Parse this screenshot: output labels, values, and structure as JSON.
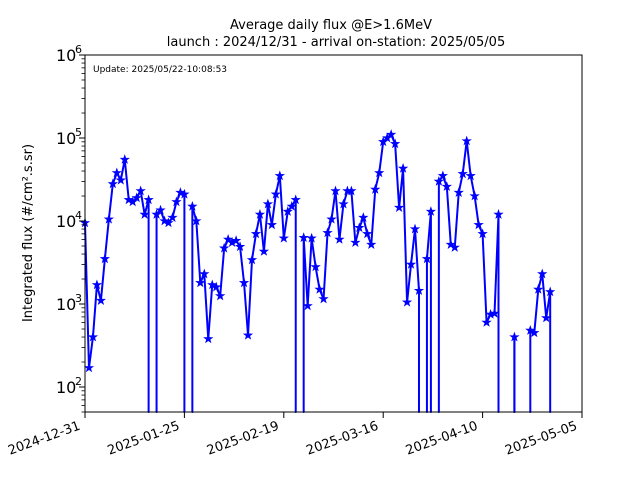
{
  "chart_data": {
    "type": "line",
    "title_line1": "Average daily flux @E>1.6MeV",
    "title_line2": "launch : 2024/12/31 - arrival on-station: 2025/05/05",
    "annotation": "Update: 2025/05/22-10:08:53",
    "ylabel": "Integrated flux (#/cm².s.sr)",
    "xlabel": "",
    "yscale": "log",
    "ylim": [
      50,
      1000000
    ],
    "xlim": [
      "2024-12-31",
      "2025-05-05"
    ],
    "xticks": [
      "2024-12-31",
      "2025-01-25",
      "2025-02-19",
      "2025-03-16",
      "2025-04-10",
      "2025-05-05"
    ],
    "yticks": [
      {
        "base": "10",
        "exp": "2",
        "value": 100
      },
      {
        "base": "10",
        "exp": "3",
        "value": 1000
      },
      {
        "base": "10",
        "exp": "4",
        "value": 10000
      },
      {
        "base": "10",
        "exp": "5",
        "value": 100000
      },
      {
        "base": "10",
        "exp": "6",
        "value": 1000000
      }
    ],
    "grid": false,
    "series": [
      {
        "color": "#0000ff",
        "marker": "star",
        "x": [
          "2024-12-31",
          "2025-01-01",
          "2025-01-02",
          "2025-01-03",
          "2025-01-04",
          "2025-01-05",
          "2025-01-06",
          "2025-01-07",
          "2025-01-08",
          "2025-01-09",
          "2025-01-10",
          "2025-01-11",
          "2025-01-12",
          "2025-01-13",
          "2025-01-14",
          "2025-01-15",
          "2025-01-16",
          "2025-01-17",
          "2025-01-18",
          "2025-01-19",
          "2025-01-20",
          "2025-01-21",
          "2025-01-22",
          "2025-01-23",
          "2025-01-24",
          "2025-01-25",
          "2025-01-26",
          "2025-01-27",
          "2025-01-28",
          "2025-01-29",
          "2025-01-30",
          "2025-01-31",
          "2025-02-01",
          "2025-02-02",
          "2025-02-03",
          "2025-02-04",
          "2025-02-05",
          "2025-02-06",
          "2025-02-07",
          "2025-02-08",
          "2025-02-09",
          "2025-02-10",
          "2025-02-11",
          "2025-02-12",
          "2025-02-13",
          "2025-02-14",
          "2025-02-15",
          "2025-02-16",
          "2025-02-17",
          "2025-02-18",
          "2025-02-19",
          "2025-02-20",
          "2025-02-21",
          "2025-02-22",
          "2025-02-23",
          "2025-02-24",
          "2025-02-25",
          "2025-02-26",
          "2025-02-27",
          "2025-02-28",
          "2025-03-01",
          "2025-03-02",
          "2025-03-03",
          "2025-03-04",
          "2025-03-05",
          "2025-03-06",
          "2025-03-07",
          "2025-03-08",
          "2025-03-09",
          "2025-03-10",
          "2025-03-11",
          "2025-03-12",
          "2025-03-13",
          "2025-03-14",
          "2025-03-15",
          "2025-03-16",
          "2025-03-17",
          "2025-03-18",
          "2025-03-19",
          "2025-03-20",
          "2025-03-21",
          "2025-03-22",
          "2025-03-23",
          "2025-03-24",
          "2025-03-25",
          "2025-03-26",
          "2025-03-27",
          "2025-03-28",
          "2025-03-29",
          "2025-03-30",
          "2025-03-31",
          "2025-04-01",
          "2025-04-02",
          "2025-04-03",
          "2025-04-04",
          "2025-04-05",
          "2025-04-06",
          "2025-04-07",
          "2025-04-08",
          "2025-04-09",
          "2025-04-10",
          "2025-04-11",
          "2025-04-12",
          "2025-04-13",
          "2025-04-14",
          "2025-04-15",
          "2025-04-16",
          "2025-04-17",
          "2025-04-18",
          "2025-04-19",
          "2025-04-20",
          "2025-04-21",
          "2025-04-22",
          "2025-04-23",
          "2025-04-24",
          "2025-04-25",
          "2025-04-26",
          "2025-04-27",
          "2025-04-28",
          "2025-04-29",
          "2025-04-30",
          "2025-05-01",
          "2025-05-02",
          "2025-05-03",
          "2025-05-04",
          "2025-05-05"
        ],
        "y": [
          9500,
          170,
          400,
          1700,
          1100,
          3500,
          10500,
          28000,
          38000,
          31000,
          55000,
          18000,
          17000,
          19000,
          23000,
          12000,
          18000,
          null,
          12000,
          13500,
          10000,
          9500,
          11000,
          17000,
          22000,
          21000,
          null,
          15000,
          10000,
          1800,
          2300,
          380,
          1700,
          1600,
          1250,
          4700,
          6000,
          5500,
          5800,
          4900,
          1800,
          420,
          3400,
          7000,
          12000,
          4300,
          16000,
          9000,
          21000,
          35000,
          6200,
          13000,
          15000,
          18000,
          null,
          6300,
          950,
          6200,
          2800,
          1500,
          1150,
          7200,
          10500,
          23000,
          6000,
          16000,
          23000,
          23000,
          5500,
          8300,
          11000,
          7000,
          5200,
          24000,
          38000,
          90000,
          100000,
          110000,
          85000,
          14500,
          43000,
          1050,
          3000,
          8000,
          1450,
          null,
          3500,
          13000,
          null,
          30000,
          35000,
          26000,
          5200,
          4800,
          22000,
          37000,
          92000,
          35000,
          20000,
          9000,
          7000,
          600,
          750,
          770,
          12000,
          null,
          null,
          null,
          400,
          null,
          null,
          null,
          480,
          450,
          1500,
          2300,
          680,
          1400,
          null,
          null,
          null,
          null,
          null,
          null,
          null,
          null
        ]
      }
    ]
  }
}
